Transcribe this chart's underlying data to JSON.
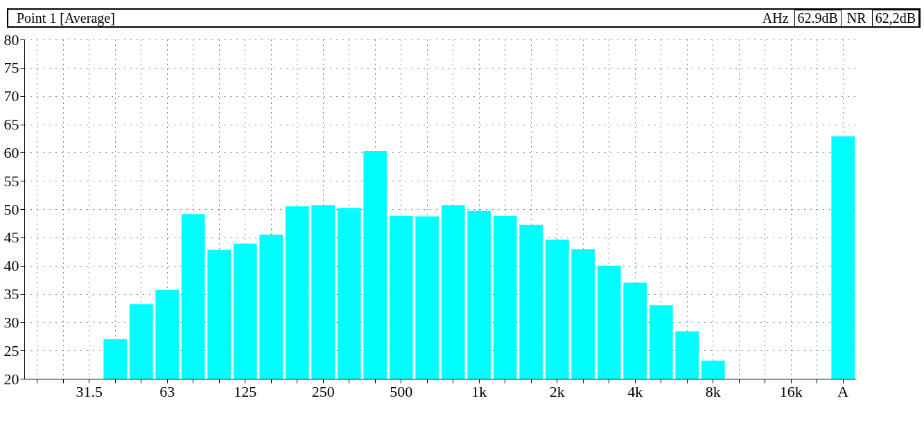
{
  "chart_data": {
    "type": "bar",
    "title": "Point 1 [Average]",
    "annotations": [
      "AHz",
      "62.9dB",
      "NR",
      "62,2dB"
    ],
    "categories": [
      null,
      null,
      "31.5",
      null,
      null,
      "63",
      null,
      null,
      "125",
      null,
      null,
      "250",
      null,
      null,
      "500",
      null,
      null,
      "1k",
      null,
      null,
      "2k",
      null,
      null,
      "4k",
      null,
      null,
      "8k",
      null,
      null,
      "16k",
      null,
      "A"
    ],
    "values": [
      null,
      null,
      null,
      27,
      33.2,
      35.7,
      49.1,
      42.8,
      43.9,
      45.5,
      50.5,
      50.7,
      50.2,
      60.3,
      48.8,
      48.7,
      50.7,
      49.7,
      48.8,
      47.2,
      44.6,
      42.9,
      40,
      37,
      33,
      28.4,
      23.2,
      null,
      null,
      null,
      null,
      62.9
    ],
    "color": "#00ffff",
    "ylim": [
      20,
      80
    ],
    "yticks": [
      20,
      25,
      30,
      35,
      40,
      45,
      50,
      55,
      60,
      65,
      70,
      75,
      80
    ],
    "grid": true
  }
}
